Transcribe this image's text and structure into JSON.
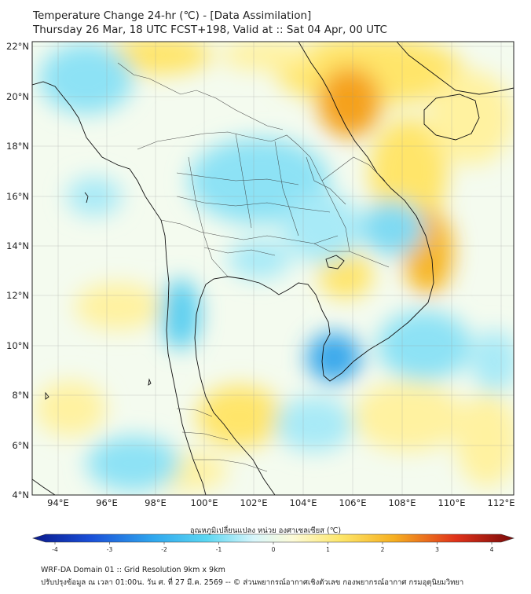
{
  "title_line1": "Temperature Change 24-hr (℃) - [Data Assimilation]",
  "title_line2": "Thursday 26 Mar, 18 UTC FCST+198, Valid at :: Sat 04 Apr, 00 UTC",
  "lat_ticks": [
    "22°N",
    "20°N",
    "18°N",
    "16°N",
    "14°N",
    "12°N",
    "10°N",
    "8°N",
    "6°N",
    "4°N"
  ],
  "lon_ticks": [
    "94°E",
    "96°E",
    "98°E",
    "100°E",
    "102°E",
    "104°E",
    "106°E",
    "108°E",
    "110°E",
    "112°E"
  ],
  "colorbar": {
    "label": "อุณหภูมิเปลี่ยนแปลง หน่วย องศาเซลเซียส (℃)",
    "ticks": [
      "-4",
      "-3",
      "-2",
      "-1",
      "0",
      "1",
      "2",
      "3",
      "4"
    ],
    "min": -4,
    "max": 4
  },
  "footer_line1": "WRF-DA Domain 01 :: Grid Resolution 9km x 9km",
  "footer_line2": "ปรับปรุงข้อมูล ณ เวลา 01:00น. วัน ศ. ที่ 27 มี.ค. 2569 -- © ส่วนพยากรณ์อากาศเชิงตัวเลข กองพยากรณ์อากาศ กรมอุตุนิยมวิทยา",
  "colors": {
    "cold_strong": "#1f6fd6",
    "cold": "#5ccff0",
    "cold_light": "#bff0fb",
    "neutral": "#f4fbef",
    "warm_light": "#fff3a6",
    "warm": "#ffd62e",
    "warm_strong": "#ee8a1a",
    "coast": "#111111",
    "border": "#333333",
    "grid": "#9a9a9a"
  }
}
